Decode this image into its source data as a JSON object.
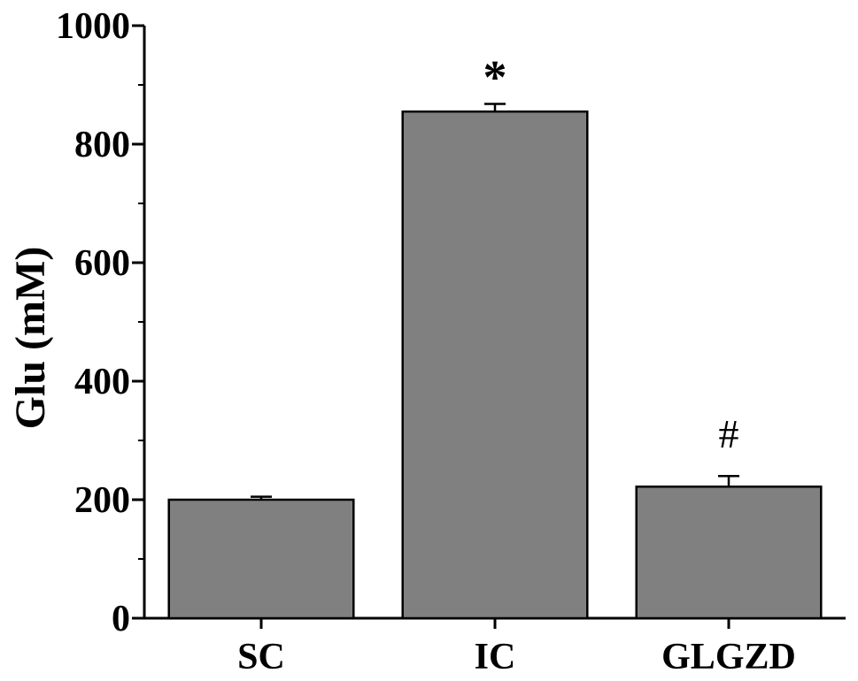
{
  "chart_data": {
    "type": "bar",
    "categories": [
      "SC",
      "IC",
      "GLGZD"
    ],
    "values": [
      200,
      855,
      222
    ],
    "errors": [
      5,
      13,
      18
    ],
    "annotations": [
      "",
      "*",
      "#"
    ],
    "ylabel": "Glu (mM)",
    "xlabel": "",
    "ylim": [
      0,
      1000
    ],
    "yticks": [
      0,
      200,
      400,
      600,
      800,
      1000
    ],
    "grid": false,
    "bar_color": "#808080",
    "edge_color": "#000000"
  }
}
